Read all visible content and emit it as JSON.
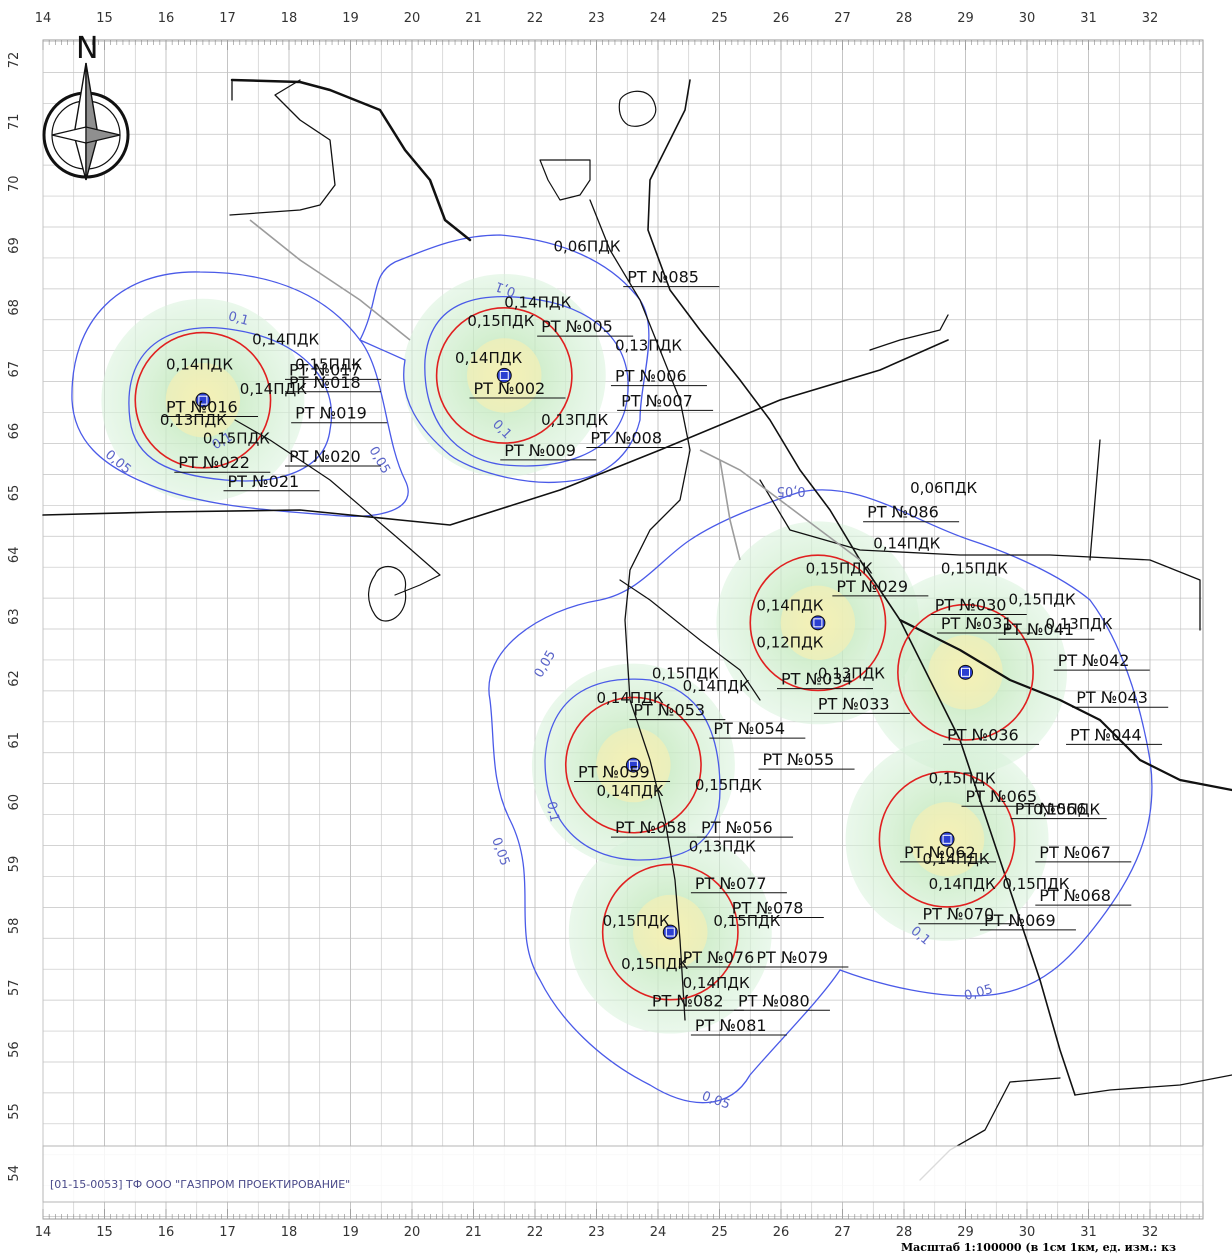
{
  "north_label": "N",
  "x_ticks": [
    "14",
    "15",
    "16",
    "17",
    "18",
    "19",
    "20",
    "21",
    "22",
    "23",
    "24",
    "25",
    "26",
    "27",
    "28",
    "29",
    "30",
    "31",
    "32"
  ],
  "y_ticks": [
    "72",
    "71",
    "70",
    "69",
    "68",
    "67",
    "66",
    "65",
    "64",
    "63",
    "62",
    "61",
    "60",
    "59",
    "58",
    "57",
    "56",
    "55",
    "54"
  ],
  "stamp": "[01-15-0053] ТФ ООО \"ГАЗПРОМ ПРОЕКТИРОВАНИЕ\"",
  "scale": "Масштаб 1:100000 (в 1см 1км, ед. изм.: кз",
  "colors": {
    "grid": "#b4b4b4",
    "isoline": "#4a5ae8",
    "circle": "#e02020",
    "zone": "#bfe8c8",
    "network": "#111111",
    "label": "#111111"
  },
  "isoline_labels": [
    {
      "text": "0,1",
      "x": 17.0,
      "y": 67.8,
      "rot": 15
    },
    {
      "text": "0,05",
      "x": 15.0,
      "y": 65.6,
      "rot": 40
    },
    {
      "text": "0,1",
      "x": 16.8,
      "y": 65.7,
      "rot": -30
    },
    {
      "text": "0,05",
      "x": 19.3,
      "y": 65.7,
      "rot": 60
    },
    {
      "text": "0,1",
      "x": 21.7,
      "y": 68.3,
      "rot": -160
    },
    {
      "text": "0,1",
      "x": 21.3,
      "y": 66.1,
      "rot": 45
    },
    {
      "text": "0,05",
      "x": 26.4,
      "y": 65.1,
      "rot": 180
    },
    {
      "text": "0,05",
      "x": 22.1,
      "y": 62.0,
      "rot": -60
    },
    {
      "text": "0,1",
      "x": 22.2,
      "y": 60.0,
      "rot": 80
    },
    {
      "text": "0,05",
      "x": 21.3,
      "y": 59.4,
      "rot": 70
    },
    {
      "text": "0,05",
      "x": 24.7,
      "y": 55.2,
      "rot": 20
    },
    {
      "text": "0,1",
      "x": 28.1,
      "y": 57.9,
      "rot": 40
    },
    {
      "text": "0,05",
      "x": 29.0,
      "y": 56.8,
      "rot": -15
    }
  ],
  "stations": [
    {
      "label": "РТ №017",
      "x": 18.0,
      "y": 66.9
    },
    {
      "label": "РТ №018",
      "x": 18.0,
      "y": 66.7
    },
    {
      "label": "РТ №019",
      "x": 18.1,
      "y": 66.2
    },
    {
      "label": "РТ №020",
      "x": 18.0,
      "y": 65.5
    },
    {
      "label": "РТ №021",
      "x": 17.0,
      "y": 65.1
    },
    {
      "label": "РТ №022",
      "x": 16.2,
      "y": 65.4
    },
    {
      "label": "РТ №016",
      "x": 16.0,
      "y": 66.3
    },
    {
      "label": "РТ №085",
      "x": 23.5,
      "y": 68.4
    },
    {
      "label": "РТ №005",
      "x": 22.1,
      "y": 67.6
    },
    {
      "label": "РТ №006",
      "x": 23.3,
      "y": 66.8
    },
    {
      "label": "РТ №007",
      "x": 23.4,
      "y": 66.4
    },
    {
      "label": "РТ №008",
      "x": 22.9,
      "y": 65.8
    },
    {
      "label": "РТ №009",
      "x": 21.5,
      "y": 65.6
    },
    {
      "label": "РТ №002",
      "x": 21.0,
      "y": 66.6
    },
    {
      "label": "РТ №086",
      "x": 27.4,
      "y": 64.6
    },
    {
      "label": "РТ №029",
      "x": 26.9,
      "y": 63.4
    },
    {
      "label": "РТ №030",
      "x": 28.5,
      "y": 63.1
    },
    {
      "label": "РТ №031",
      "x": 28.6,
      "y": 62.8
    },
    {
      "label": "РТ №041",
      "x": 29.6,
      "y": 62.7
    },
    {
      "label": "РТ №042",
      "x": 30.5,
      "y": 62.2
    },
    {
      "label": "РТ №043",
      "x": 30.8,
      "y": 61.6
    },
    {
      "label": "РТ №044",
      "x": 30.7,
      "y": 61.0
    },
    {
      "label": "РТ №034",
      "x": 26.0,
      "y": 61.9
    },
    {
      "label": "РТ №033",
      "x": 26.6,
      "y": 61.5
    },
    {
      "label": "РТ №036",
      "x": 28.7,
      "y": 61.0
    },
    {
      "label": "РТ №053",
      "x": 23.6,
      "y": 61.4
    },
    {
      "label": "РТ №054",
      "x": 24.9,
      "y": 61.1
    },
    {
      "label": "РТ №055",
      "x": 25.7,
      "y": 60.6
    },
    {
      "label": "РТ №056",
      "x": 24.7,
      "y": 59.5
    },
    {
      "label": "РТ №058",
      "x": 23.3,
      "y": 59.5
    },
    {
      "label": "РТ №059",
      "x": 22.7,
      "y": 60.4
    },
    {
      "label": "РТ №065",
      "x": 29.0,
      "y": 60.0
    },
    {
      "label": "РТ №066",
      "x": 29.8,
      "y": 59.8
    },
    {
      "label": "РТ №067",
      "x": 30.2,
      "y": 59.1
    },
    {
      "label": "РТ №068",
      "x": 30.2,
      "y": 58.4
    },
    {
      "label": "РТ №069",
      "x": 29.3,
      "y": 58.0
    },
    {
      "label": "РТ №070",
      "x": 28.3,
      "y": 58.1
    },
    {
      "label": "РТ №062",
      "x": 28.0,
      "y": 59.1
    },
    {
      "label": "РТ №077",
      "x": 24.6,
      "y": 58.6
    },
    {
      "label": "РТ №078",
      "x": 25.2,
      "y": 58.2
    },
    {
      "label": "РТ №079",
      "x": 25.6,
      "y": 57.4
    },
    {
      "label": "РТ №080",
      "x": 25.3,
      "y": 56.7
    },
    {
      "label": "РТ №081",
      "x": 24.6,
      "y": 56.3
    },
    {
      "label": "РТ №082",
      "x": 23.9,
      "y": 56.7
    },
    {
      "label": "РТ №076",
      "x": 24.4,
      "y": 57.4
    }
  ],
  "pdk_labels": [
    {
      "text": "0,14ПДК",
      "x": 17.4,
      "y": 67.4
    },
    {
      "text": "0,14ПДК",
      "x": 16.0,
      "y": 67.0
    },
    {
      "text": "0,15ПДК",
      "x": 18.1,
      "y": 67.0
    },
    {
      "text": "0,13ПДК",
      "x": 15.9,
      "y": 66.1
    },
    {
      "text": "0,15ПДК",
      "x": 16.6,
      "y": 65.8
    },
    {
      "text": "0,14ПДК",
      "x": 17.2,
      "y": 66.6
    },
    {
      "text": "0,06ПДК",
      "x": 22.3,
      "y": 68.9
    },
    {
      "text": "0,14ПДК",
      "x": 21.5,
      "y": 68.0
    },
    {
      "text": "0,15ПДК",
      "x": 20.9,
      "y": 67.7
    },
    {
      "text": "0,14ПДК",
      "x": 20.7,
      "y": 67.1
    },
    {
      "text": "0,13ПДК",
      "x": 22.1,
      "y": 66.1
    },
    {
      "text": "0,13ПДК",
      "x": 23.3,
      "y": 67.3
    },
    {
      "text": "0,06ПДК",
      "x": 28.1,
      "y": 65.0
    },
    {
      "text": "0,14ПДК",
      "x": 27.5,
      "y": 64.1
    },
    {
      "text": "0,15ПДК",
      "x": 26.4,
      "y": 63.7
    },
    {
      "text": "0,15ПДК",
      "x": 28.6,
      "y": 63.7
    },
    {
      "text": "0,15ПДК",
      "x": 29.7,
      "y": 63.2
    },
    {
      "text": "0,13ПДК",
      "x": 30.3,
      "y": 62.8
    },
    {
      "text": "0,14ПДК",
      "x": 25.6,
      "y": 63.1
    },
    {
      "text": "0,13ПДК",
      "x": 26.6,
      "y": 62.0
    },
    {
      "text": "0,12ПДК",
      "x": 25.6,
      "y": 62.5
    },
    {
      "text": "0,15ПДК",
      "x": 23.9,
      "y": 62.0
    },
    {
      "text": "0,14ПДК",
      "x": 24.4,
      "y": 61.8
    },
    {
      "text": "0,14ПДК",
      "x": 23.0,
      "y": 61.6
    },
    {
      "text": "0,14ПДК",
      "x": 23.0,
      "y": 60.1
    },
    {
      "text": "0,15ПДК",
      "x": 24.6,
      "y": 60.2
    },
    {
      "text": "0,13ПДК",
      "x": 24.5,
      "y": 59.2
    },
    {
      "text": "0,15ПДК",
      "x": 23.1,
      "y": 58.0
    },
    {
      "text": "0,15ПДК",
      "x": 24.9,
      "y": 58.0
    },
    {
      "text": "0,14ПДК",
      "x": 24.4,
      "y": 57.0
    },
    {
      "text": "0,15ПДК",
      "x": 23.4,
      "y": 57.3
    },
    {
      "text": "0,15ПДК",
      "x": 28.4,
      "y": 60.3
    },
    {
      "text": "0,15ПДК",
      "x": 30.1,
      "y": 59.8
    },
    {
      "text": "0,14ПДК",
      "x": 28.3,
      "y": 59.0
    },
    {
      "text": "0,14ПДК",
      "x": 28.4,
      "y": 58.6
    },
    {
      "text": "0,15ПДК",
      "x": 29.6,
      "y": 58.6
    }
  ],
  "sites": [
    {
      "cx": 16.6,
      "cy": 66.5,
      "r": 1.1
    },
    {
      "cx": 21.5,
      "cy": 66.9,
      "r": 1.1
    },
    {
      "cx": 26.6,
      "cy": 62.9,
      "r": 1.1
    },
    {
      "cx": 29.0,
      "cy": 62.1,
      "r": 1.1
    },
    {
      "cx": 23.6,
      "cy": 60.6,
      "r": 1.1
    },
    {
      "cx": 24.2,
      "cy": 57.9,
      "r": 1.1
    },
    {
      "cx": 28.7,
      "cy": 59.4,
      "r": 1.1
    }
  ]
}
